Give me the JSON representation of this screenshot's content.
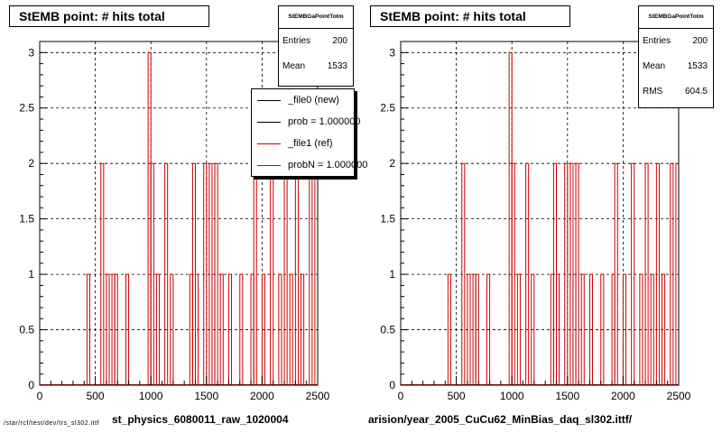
{
  "colors": {
    "hist": "#cc0000",
    "frame": "#000000",
    "grid": "#000000",
    "background": "#ffffff"
  },
  "left_panel": {
    "title": "StEMB point: # hits total",
    "stats": {
      "name": "StEMBGaPointTotm",
      "entries_label": "Entries",
      "entries_value": "200",
      "mean_label": "Mean",
      "mean_value": "1533"
    },
    "legend": [
      {
        "label": "_file0 (new)",
        "color": "#000000"
      },
      {
        "label": "prob = 1.000000",
        "color": "#000000"
      },
      {
        "label": "_file1 (ref)",
        "color": "#cc0000"
      },
      {
        "label": "probN = 1.000000",
        "color": "#cc0000"
      }
    ],
    "x_title": "st_physics_6080011_raw_1020004"
  },
  "right_panel": {
    "title": "StEMB point: # hits total",
    "stats": {
      "name": "StEMBGaPointTotm",
      "entries_label": "Entries",
      "entries_value": "200",
      "mean_label": "Mean",
      "mean_value": "1533",
      "rms_label": "RMS",
      "rms_value": "604.5"
    },
    "x_title": "arision/year_2005_CuCu62_MinBias_daq_sl302.ittf/"
  },
  "footer_text": "/star/rcf/test/dev/trs_sl302.ittf",
  "chart_data": [
    {
      "type": "bar",
      "style": "histogram-step",
      "title": "StEMB point: # hits total",
      "xlim": [
        0,
        2500
      ],
      "ylim": [
        0,
        3.1
      ],
      "xticks": [
        0,
        500,
        1000,
        1500,
        2000,
        2500
      ],
      "yticks": [
        0,
        0.5,
        1,
        1.5,
        2,
        2.5,
        3
      ],
      "grid": true,
      "bin_width": 25,
      "bins": [
        [
          425,
          1
        ],
        [
          550,
          2
        ],
        [
          600,
          1
        ],
        [
          650,
          1
        ],
        [
          675,
          1
        ],
        [
          775,
          1
        ],
        [
          975,
          3
        ],
        [
          1000,
          2
        ],
        [
          1050,
          1
        ],
        [
          1125,
          2
        ],
        [
          1175,
          1
        ],
        [
          1350,
          1
        ],
        [
          1375,
          2
        ],
        [
          1400,
          1
        ],
        [
          1475,
          2
        ],
        [
          1525,
          2
        ],
        [
          1550,
          1
        ],
        [
          1575,
          2
        ],
        [
          1625,
          1
        ],
        [
          1700,
          1
        ],
        [
          1800,
          1
        ],
        [
          1900,
          1
        ],
        [
          1925,
          2
        ],
        [
          2000,
          1
        ],
        [
          2075,
          2
        ],
        [
          2150,
          1
        ],
        [
          2200,
          2
        ],
        [
          2250,
          1
        ],
        [
          2300,
          2
        ],
        [
          2350,
          1
        ],
        [
          2425,
          2
        ],
        [
          2475,
          2
        ]
      ],
      "xlabel": "st_physics_6080011_raw_1020004"
    },
    {
      "type": "bar",
      "style": "histogram-step",
      "title": "StEMB point: # hits total",
      "xlim": [
        0,
        2500
      ],
      "ylim": [
        0,
        3.1
      ],
      "xticks": [
        0,
        500,
        1000,
        1500,
        2000,
        2500
      ],
      "yticks": [
        0,
        0.5,
        1,
        1.5,
        2,
        2.5,
        3
      ],
      "grid": true,
      "bin_width": 25,
      "bins": [
        [
          425,
          1
        ],
        [
          550,
          2
        ],
        [
          600,
          1
        ],
        [
          650,
          1
        ],
        [
          675,
          1
        ],
        [
          775,
          1
        ],
        [
          975,
          3
        ],
        [
          1000,
          2
        ],
        [
          1050,
          1
        ],
        [
          1125,
          2
        ],
        [
          1175,
          1
        ],
        [
          1350,
          1
        ],
        [
          1375,
          2
        ],
        [
          1400,
          1
        ],
        [
          1475,
          2
        ],
        [
          1525,
          2
        ],
        [
          1550,
          1
        ],
        [
          1575,
          2
        ],
        [
          1625,
          1
        ],
        [
          1700,
          1
        ],
        [
          1800,
          1
        ],
        [
          1900,
          1
        ],
        [
          1925,
          2
        ],
        [
          2000,
          1
        ],
        [
          2075,
          2
        ],
        [
          2150,
          1
        ],
        [
          2200,
          2
        ],
        [
          2250,
          1
        ],
        [
          2300,
          2
        ],
        [
          2350,
          1
        ],
        [
          2425,
          2
        ],
        [
          2475,
          2
        ]
      ],
      "xlabel": "arision/year_2005_CuCu62_MinBias_daq_sl302.ittf/"
    }
  ]
}
